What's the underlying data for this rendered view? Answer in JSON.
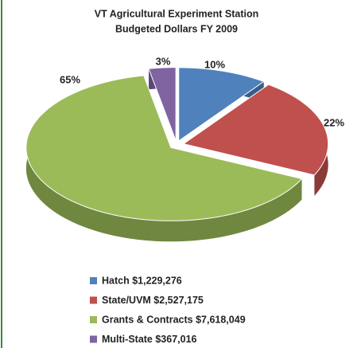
{
  "chart_data": {
    "type": "pie",
    "title": [
      "VT Agricultural Experiment Station",
      "Budgeted Dollars FY 2009"
    ],
    "categories": [
      "Hatch  $1,229,276",
      "State/UVM  $2,527,175",
      "Grants & Contracts  $7,618,049",
      "Multi-State  $367,016"
    ],
    "values": [
      10,
      22,
      65,
      3
    ],
    "value_labels": [
      "10%",
      "22%",
      "65%",
      "3%"
    ],
    "colors": [
      "#4f81bd",
      "#c0504d",
      "#9bbb59",
      "#8064a2"
    ]
  }
}
